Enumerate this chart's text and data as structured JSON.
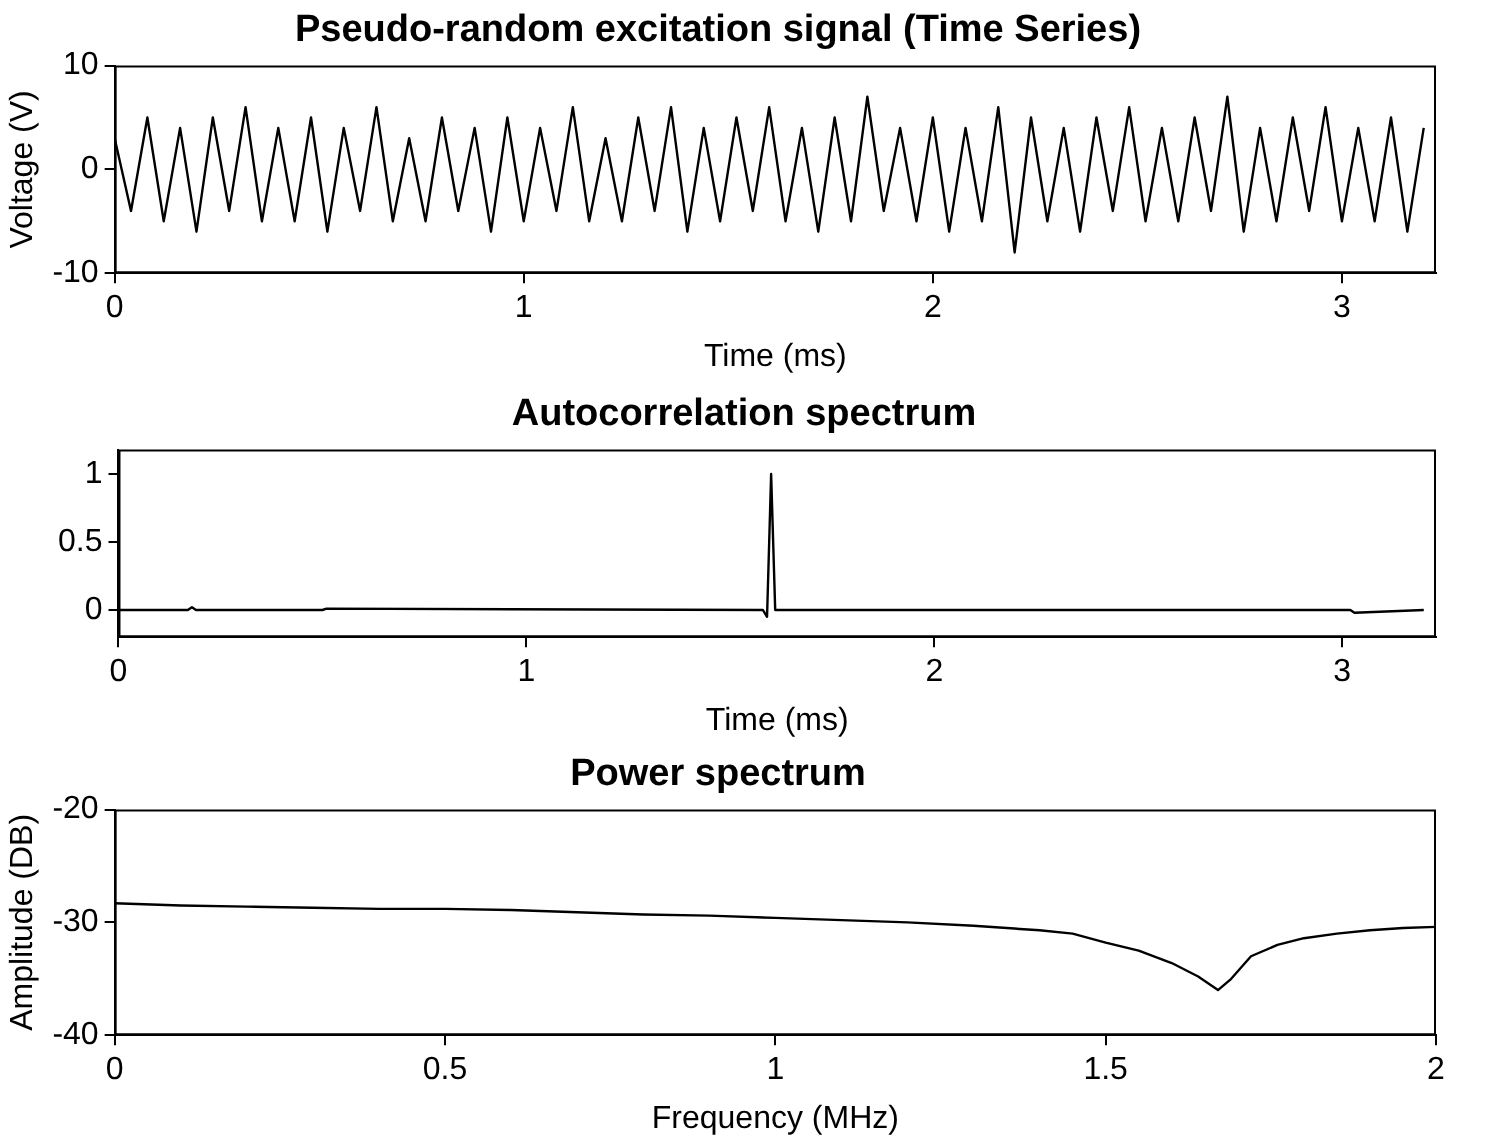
{
  "chart_data": [
    {
      "type": "line",
      "title": "Pseudo-random excitation signal (Time Series)",
      "xlabel": "Time (ms)",
      "ylabel": "Voltage (V)",
      "color": "#000000",
      "x": [
        0,
        0.04,
        0.08,
        0.12,
        0.16,
        0.2,
        0.24,
        0.28,
        0.32,
        0.36,
        0.4,
        0.44,
        0.48,
        0.52,
        0.56,
        0.6,
        0.64,
        0.68,
        0.72,
        0.76,
        0.8,
        0.84,
        0.88,
        0.92,
        0.96,
        1,
        1.04,
        1.08,
        1.12,
        1.16,
        1.2,
        1.24,
        1.28,
        1.32,
        1.36,
        1.4,
        1.44,
        1.48,
        1.52,
        1.56,
        1.6,
        1.64,
        1.68,
        1.72,
        1.76,
        1.8,
        1.84,
        1.88,
        1.92,
        1.96,
        2,
        2.04,
        2.08,
        2.12,
        2.16,
        2.2,
        2.24,
        2.28,
        2.32,
        2.36,
        2.4,
        2.44,
        2.48,
        2.52,
        2.56,
        2.6,
        2.64,
        2.68,
        2.72,
        2.76,
        2.8,
        2.84,
        2.88,
        2.92,
        2.96,
        3,
        3.04,
        3.08,
        3.12,
        3.16,
        3.2
      ],
      "values": [
        3,
        -4,
        5,
        -5,
        4,
        -6,
        5,
        -4,
        6,
        -5,
        4,
        -5,
        5,
        -6,
        4,
        -4,
        6,
        -5,
        3,
        -5,
        5,
        -4,
        4,
        -6,
        5,
        -5,
        4,
        -4,
        6,
        -5,
        3,
        -5,
        5,
        -4,
        6,
        -6,
        4,
        -5,
        5,
        -4,
        6,
        -5,
        4,
        -6,
        5,
        -5,
        7,
        -4,
        4,
        -5,
        5,
        -6,
        4,
        -5,
        6,
        -8,
        5,
        -5,
        4,
        -6,
        5,
        -4,
        6,
        -5,
        4,
        -5,
        5,
        -4,
        7,
        -6,
        4,
        -5,
        5,
        -4,
        6,
        -5,
        4,
        -5,
        5,
        -6,
        4
      ],
      "xlim": [
        0,
        3.23
      ],
      "xticks": [
        0,
        1,
        2,
        3
      ],
      "ylim": [
        -10,
        10
      ],
      "yticks": [
        -10,
        0,
        10
      ]
    },
    {
      "type": "line",
      "title": "Autocorrelation spectrum",
      "xlabel": "Time (ms)",
      "color": "#000000",
      "x": [
        0,
        0.17,
        0.18,
        0.19,
        0.5,
        0.51,
        1.58,
        1.59,
        1.6,
        1.61,
        1.62,
        2.7,
        3.02,
        3.03,
        3.2
      ],
      "values": [
        0,
        0,
        0.02,
        0,
        0,
        0.01,
        0,
        -0.05,
        1,
        0,
        0,
        0,
        0,
        -0.02,
        0
      ],
      "xlim": [
        0,
        3.23
      ],
      "xticks": [
        0,
        1,
        2,
        3
      ],
      "ylim": [
        -0.2,
        1.18
      ],
      "yticks": [
        0,
        0.5,
        1
      ]
    },
    {
      "type": "line",
      "title": "Power spectrum",
      "xlabel": "Frequency (MHz)",
      "ylabel": "Amplitude (DB)",
      "color": "#000000",
      "x": [
        0,
        0.1,
        0.2,
        0.3,
        0.4,
        0.5,
        0.6,
        0.7,
        0.8,
        0.9,
        1,
        1.1,
        1.2,
        1.3,
        1.4,
        1.45,
        1.5,
        1.55,
        1.6,
        1.64,
        1.67,
        1.69,
        1.72,
        1.76,
        1.8,
        1.85,
        1.9,
        1.95,
        2
      ],
      "values": [
        -28.3,
        -28.5,
        -28.6,
        -28.7,
        -28.8,
        -28.8,
        -28.9,
        -29.1,
        -29.3,
        -29.4,
        -29.6,
        -29.8,
        -30,
        -30.3,
        -30.7,
        -31,
        -31.8,
        -32.5,
        -33.6,
        -34.8,
        -36,
        -35,
        -33,
        -32,
        -31.4,
        -31,
        -30.7,
        -30.5,
        -30.4
      ],
      "xlim": [
        0,
        2
      ],
      "xticks": [
        0,
        0.5,
        1,
        1.5,
        2
      ],
      "ylim": [
        -40,
        -20
      ],
      "yticks": [
        -40,
        -30,
        -20
      ]
    }
  ]
}
